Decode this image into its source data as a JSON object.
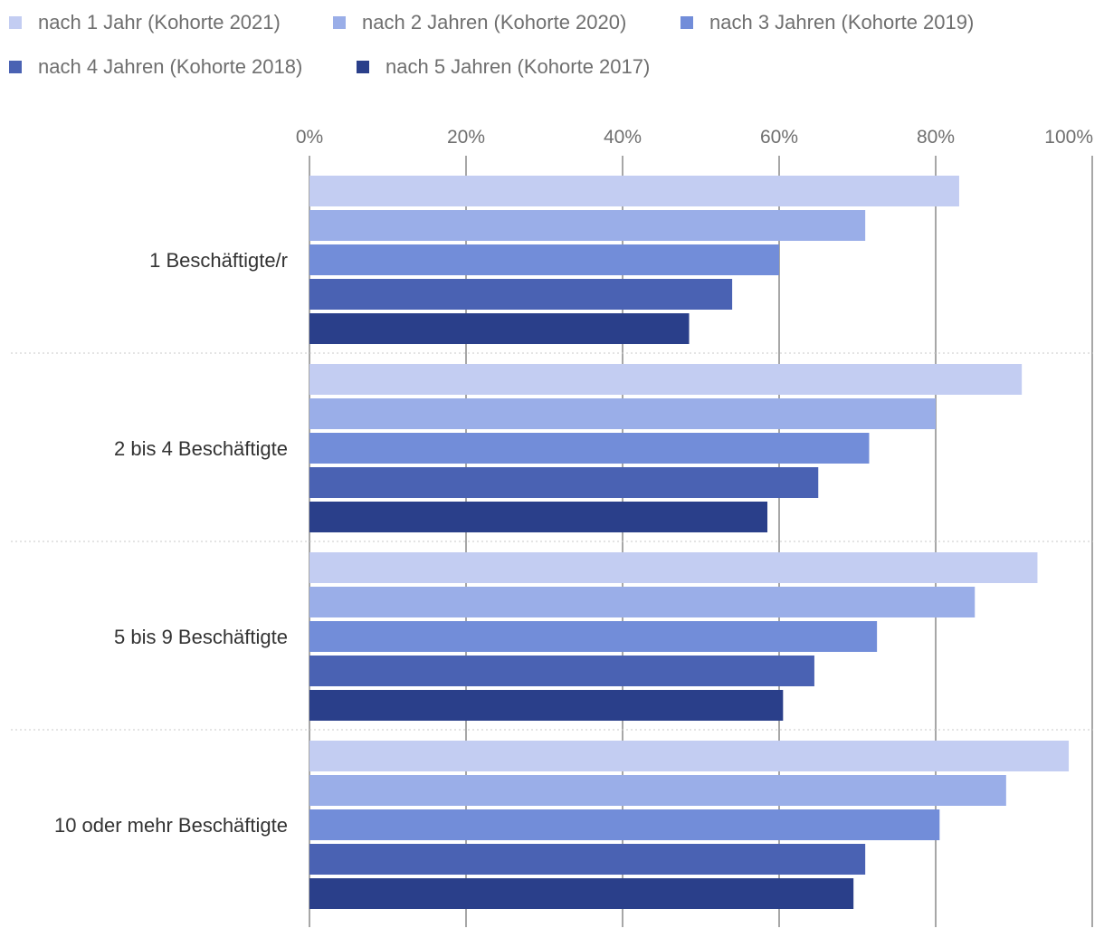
{
  "chart_data": {
    "type": "bar",
    "orientation": "horizontal",
    "title": "",
    "xlabel": "",
    "ylabel": "",
    "xlim": [
      0,
      100
    ],
    "xticks": [
      "0%",
      "20%",
      "40%",
      "60%",
      "80%",
      "100%"
    ],
    "grid": true,
    "legend_position": "top",
    "categories": [
      "1 Beschäftigte/r",
      "2 bis 4 Beschäftigte",
      "5 bis 9 Beschäftigte",
      "10 oder mehr Beschäftigte"
    ],
    "series": [
      {
        "name": "nach 1 Jahr (Kohorte 2021)",
        "color": "#c3cdf2",
        "values": [
          83,
          91,
          93,
          97
        ]
      },
      {
        "name": "nach 2 Jahren (Kohorte 2020)",
        "color": "#9aaee8",
        "values": [
          71,
          80,
          85,
          89
        ]
      },
      {
        "name": "nach 3 Jahren (Kohorte 2019)",
        "color": "#728dd9",
        "values": [
          60,
          71.5,
          72.5,
          80.5
        ]
      },
      {
        "name": "nach 4 Jahren (Kohorte 2018)",
        "color": "#4a62b3",
        "values": [
          54,
          65,
          64.5,
          71
        ]
      },
      {
        "name": "nach 5 Jahren (Kohorte 2017)",
        "color": "#2a3f8a",
        "values": [
          48.5,
          58.5,
          60.5,
          69.5
        ]
      }
    ]
  }
}
